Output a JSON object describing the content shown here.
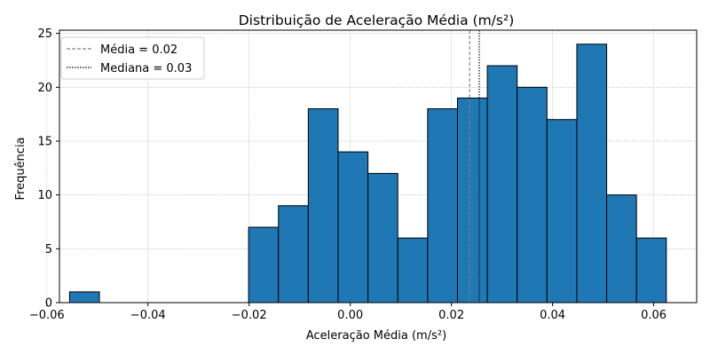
{
  "chart_data": {
    "type": "bar",
    "title": "Distribuição de Aceleração Média (m/s²)",
    "xlabel": "Aceleração Média (m/s²)",
    "ylabel": "Frequência",
    "xlim": [
      -0.0575,
      0.0685
    ],
    "ylim": [
      0,
      25.3
    ],
    "xticks": [
      -0.06,
      -0.04,
      -0.02,
      0.0,
      0.02,
      0.04,
      0.06
    ],
    "xtick_labels": [
      "−0.06",
      "−0.04",
      "−0.02",
      "0.00",
      "0.02",
      "0.04",
      "0.06"
    ],
    "yticks": [
      0,
      5,
      10,
      15,
      20,
      25
    ],
    "ytick_labels": [
      "0",
      "5",
      "10",
      "15",
      "20",
      "25"
    ],
    "bins": [
      {
        "x0": -0.0555,
        "x1": -0.0496,
        "value": 1
      },
      {
        "x0": -0.0496,
        "x1": -0.0437,
        "value": 0
      },
      {
        "x0": -0.0437,
        "x1": -0.0378,
        "value": 0
      },
      {
        "x0": -0.0378,
        "x1": -0.0319,
        "value": 0
      },
      {
        "x0": -0.0319,
        "x1": -0.026,
        "value": 0
      },
      {
        "x0": -0.026,
        "x1": -0.0201,
        "value": 0
      },
      {
        "x0": -0.0201,
        "x1": -0.0142,
        "value": 7
      },
      {
        "x0": -0.0142,
        "x1": -0.0083,
        "value": 9
      },
      {
        "x0": -0.0083,
        "x1": -0.0024,
        "value": 18
      },
      {
        "x0": -0.0024,
        "x1": 0.0035,
        "value": 14
      },
      {
        "x0": 0.0035,
        "x1": 0.0094,
        "value": 12
      },
      {
        "x0": 0.0094,
        "x1": 0.0153,
        "value": 6
      },
      {
        "x0": 0.0153,
        "x1": 0.0212,
        "value": 18
      },
      {
        "x0": 0.0212,
        "x1": 0.0271,
        "value": 19
      },
      {
        "x0": 0.0271,
        "x1": 0.033,
        "value": 22
      },
      {
        "x0": 0.033,
        "x1": 0.0389,
        "value": 20
      },
      {
        "x0": 0.0389,
        "x1": 0.0448,
        "value": 17
      },
      {
        "x0": 0.0448,
        "x1": 0.0507,
        "value": 24
      },
      {
        "x0": 0.0507,
        "x1": 0.0566,
        "value": 10
      },
      {
        "x0": 0.0566,
        "x1": 0.0625,
        "value": 6
      }
    ],
    "reference_lines": [
      {
        "name": "Média = 0.02",
        "value": 0.0236,
        "style": "dashed",
        "color": "#808080"
      },
      {
        "name": "Mediana = 0.03",
        "value": 0.0255,
        "style": "dotted",
        "color": "#000000"
      }
    ],
    "colors": {
      "bar_fill": "#1f77b4",
      "bar_edge": "#000000",
      "grid": "#b0b0b0"
    },
    "grid": true,
    "legend_position": "top-left"
  }
}
